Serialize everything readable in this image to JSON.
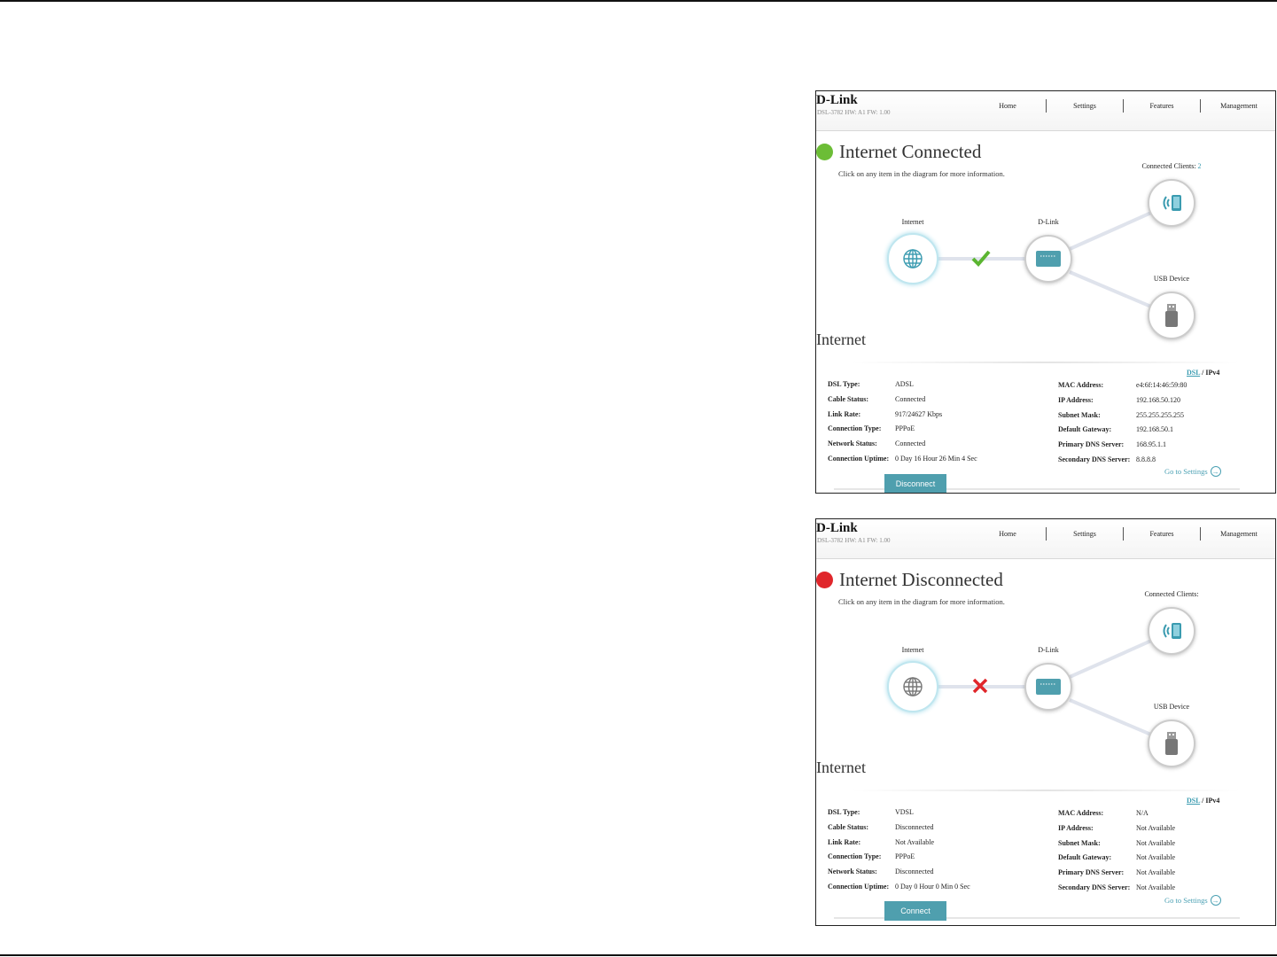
{
  "panels": [
    {
      "logo": "D-Link",
      "model": "DSL-3782  HW: A1  FW: 1.00",
      "nav": [
        "Home",
        "Settings",
        "Features",
        "Management"
      ],
      "status_color": "#6cbd36",
      "status_title": "Internet Connected",
      "subtitle": "Click on any item in the diagram for more information.",
      "clients_label": "Connected Clients:",
      "clients_count": "2",
      "internet_label": "Internet",
      "router_label": "D-Link",
      "usb_label": "USB Device",
      "link_state": "connected",
      "link_icon": "check-icon",
      "section": "Internet",
      "tab_dsl": "DSL",
      "tab_sep": "/",
      "tab_ipv4": "IPv4",
      "left": [
        {
          "k": "DSL Type:",
          "v": "ADSL"
        },
        {
          "k": "Cable Status:",
          "v": "Connected"
        },
        {
          "k": "Link Rate:",
          "v": "917/24627 Kbps"
        },
        {
          "k": "Connection Type:",
          "v": "PPPoE"
        },
        {
          "k": "Network Status:",
          "v": "Connected"
        },
        {
          "k": "Connection Uptime:",
          "v": "0 Day 16 Hour 26 Min 4 Sec"
        }
      ],
      "right": [
        {
          "k": "MAC Address:",
          "v": "e4:6f:14:46:59:80"
        },
        {
          "k": "IP Address:",
          "v": "192.168.50.120"
        },
        {
          "k": "Subnet Mask:",
          "v": "255.255.255.255"
        },
        {
          "k": "Default Gateway:",
          "v": "192.168.50.1"
        },
        {
          "k": "Primary DNS Server:",
          "v": "168.95.1.1"
        },
        {
          "k": "Secondary DNS Server:",
          "v": "8.8.8.8"
        }
      ],
      "goto": "Go to Settings",
      "button": "Disconnect"
    },
    {
      "logo": "D-Link",
      "model": "DSL-3782  HW: A1  FW: 1.00",
      "nav": [
        "Home",
        "Settings",
        "Features",
        "Management"
      ],
      "status_color": "#e0262b",
      "status_title": "Internet Disconnected",
      "subtitle": "Click on any item in the diagram for more information.",
      "clients_label": "Connected Clients:",
      "clients_count": "",
      "internet_label": "Internet",
      "router_label": "D-Link",
      "usb_label": "USB Device",
      "link_state": "disconnected",
      "link_icon": "x-icon",
      "section": "Internet",
      "tab_dsl": "DSL",
      "tab_sep": "/",
      "tab_ipv4": "IPv4",
      "left": [
        {
          "k": "DSL Type:",
          "v": "VDSL"
        },
        {
          "k": "Cable Status:",
          "v": "Disconnected"
        },
        {
          "k": "Link Rate:",
          "v": "Not Available"
        },
        {
          "k": "Connection Type:",
          "v": "PPPoE"
        },
        {
          "k": "Network Status:",
          "v": "Disconnected"
        },
        {
          "k": "Connection Uptime:",
          "v": "0 Day 0 Hour 0 Min 0 Sec"
        }
      ],
      "right": [
        {
          "k": "MAC Address:",
          "v": "N/A"
        },
        {
          "k": "IP Address:",
          "v": "Not Available"
        },
        {
          "k": "Subnet Mask:",
          "v": "Not Available"
        },
        {
          "k": "Default Gateway:",
          "v": "Not Available"
        },
        {
          "k": "Primary DNS Server:",
          "v": "Not Available"
        },
        {
          "k": "Secondary DNS Server:",
          "v": "Not Available"
        }
      ],
      "goto": "Go to Settings",
      "button": "Connect"
    }
  ]
}
